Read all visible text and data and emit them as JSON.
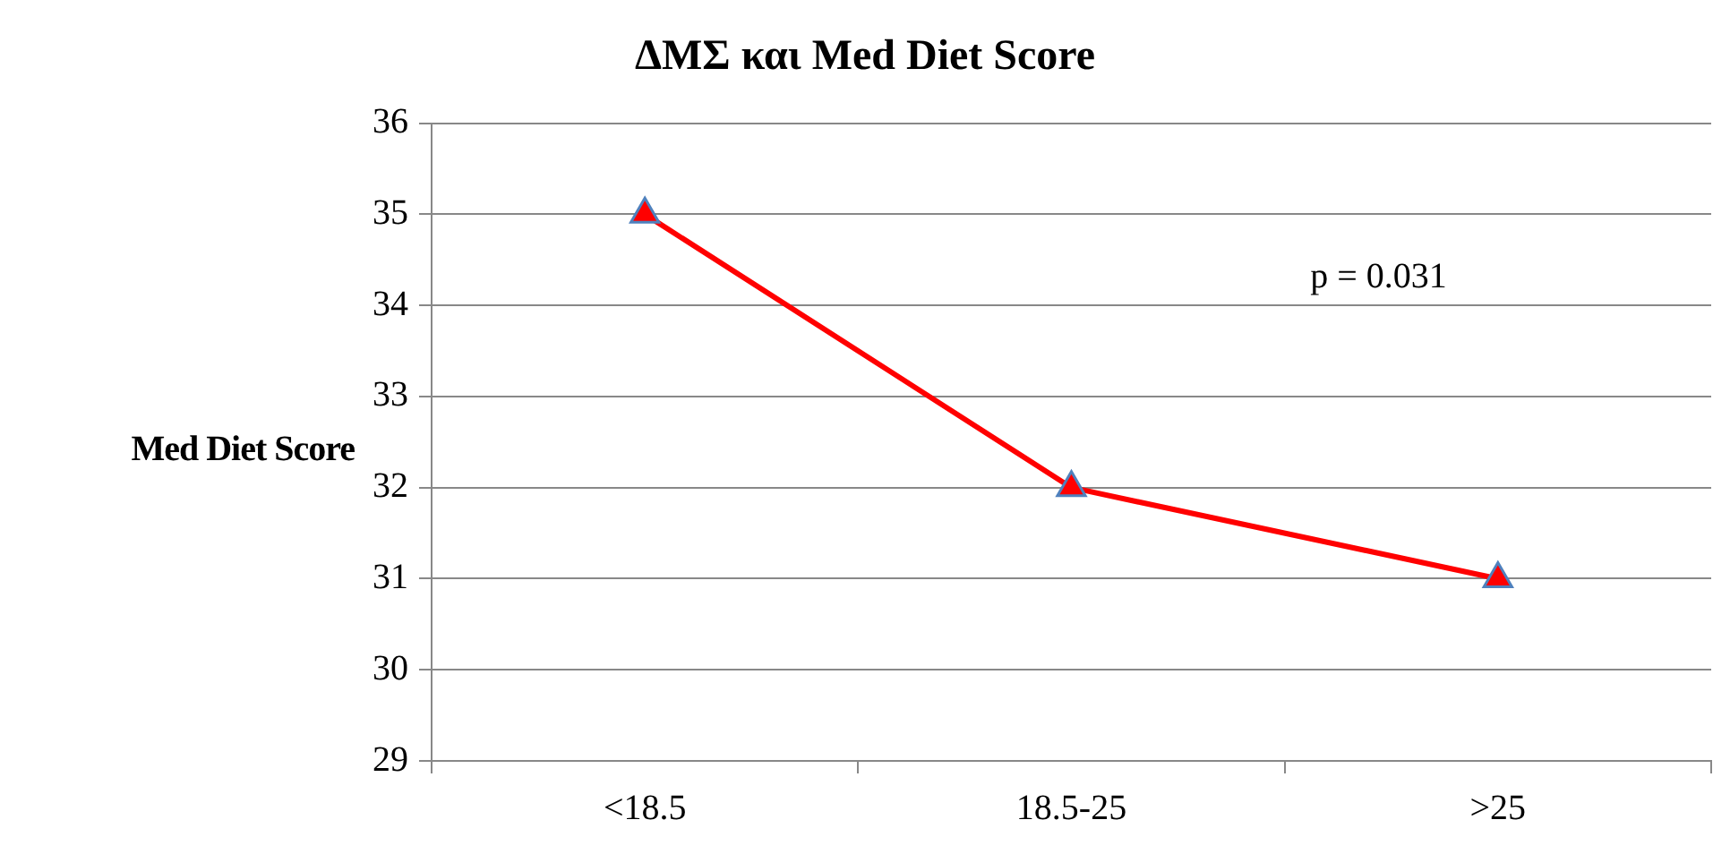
{
  "chart_data": {
    "type": "line",
    "title": "ΔΜΣ και Med Diet Score",
    "ylabel": "Med Diet Score",
    "categories": [
      "<18.5",
      "18.5-25",
      ">25"
    ],
    "series": [
      {
        "color": "#ff0000",
        "values": [
          35,
          32,
          31
        ]
      }
    ],
    "ylim": [
      29,
      36
    ],
    "yticks": [
      29,
      30,
      31,
      32,
      33,
      34,
      35,
      36
    ],
    "grid": "y",
    "legend": false,
    "marker": "triangle",
    "line_style": "solid",
    "annotations": [
      "p = 0.031"
    ]
  }
}
